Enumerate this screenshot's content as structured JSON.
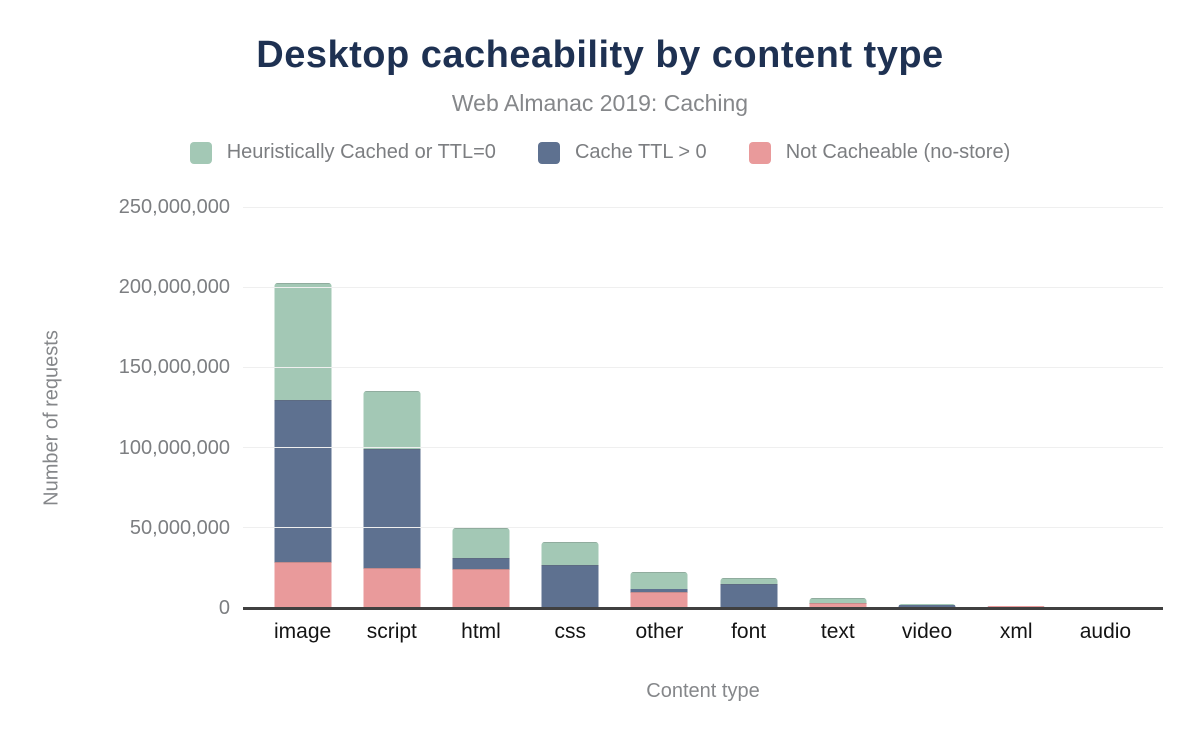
{
  "title": "Desktop cacheability by content type",
  "subtitle": "Web Almanac 2019: Caching",
  "legend": [
    {
      "label": "Heuristically Cached or TTL=0",
      "color": "#a3c8b5"
    },
    {
      "label": "Cache TTL > 0",
      "color": "#5e7190"
    },
    {
      "label": "Not Cacheable (no-store)",
      "color": "#e99a9b"
    }
  ],
  "chart_data": {
    "type": "bar",
    "stacked": true,
    "title": "Desktop cacheability by content type",
    "subtitle": "Web Almanac 2019: Caching",
    "xlabel": "Content type",
    "ylabel": "Number of requests",
    "ylim": [
      0,
      250000000
    ],
    "grid": true,
    "legend_position": "top",
    "categories": [
      "image",
      "script",
      "html",
      "css",
      "other",
      "font",
      "text",
      "video",
      "xml",
      "audio"
    ],
    "ytick_labels": [
      "250,000,000",
      "200,000,000",
      "150,000,000",
      "100,000,000",
      "50,000,000",
      "0"
    ],
    "series": [
      {
        "name": "Not Cacheable (no-store)",
        "color": "#e99a9b",
        "stack_position": "bottom",
        "values": [
          28000000,
          24500000,
          23500000,
          500000,
          9500000,
          300000,
          2300000,
          200000,
          1100000,
          100000
        ]
      },
      {
        "name": "Cache TTL > 0",
        "color": "#5e7190",
        "stack_position": "middle",
        "values": [
          100500000,
          73500000,
          6500000,
          25500000,
          1500000,
          14200000,
          200000,
          1800000,
          100000,
          100000
        ]
      },
      {
        "name": "Heuristically Cached or TTL=0",
        "color": "#a3c8b5",
        "stack_position": "top",
        "values": [
          72500000,
          35500000,
          18000000,
          14000000,
          10500000,
          3000000,
          2500000,
          500000,
          300000,
          100000
        ]
      }
    ]
  }
}
